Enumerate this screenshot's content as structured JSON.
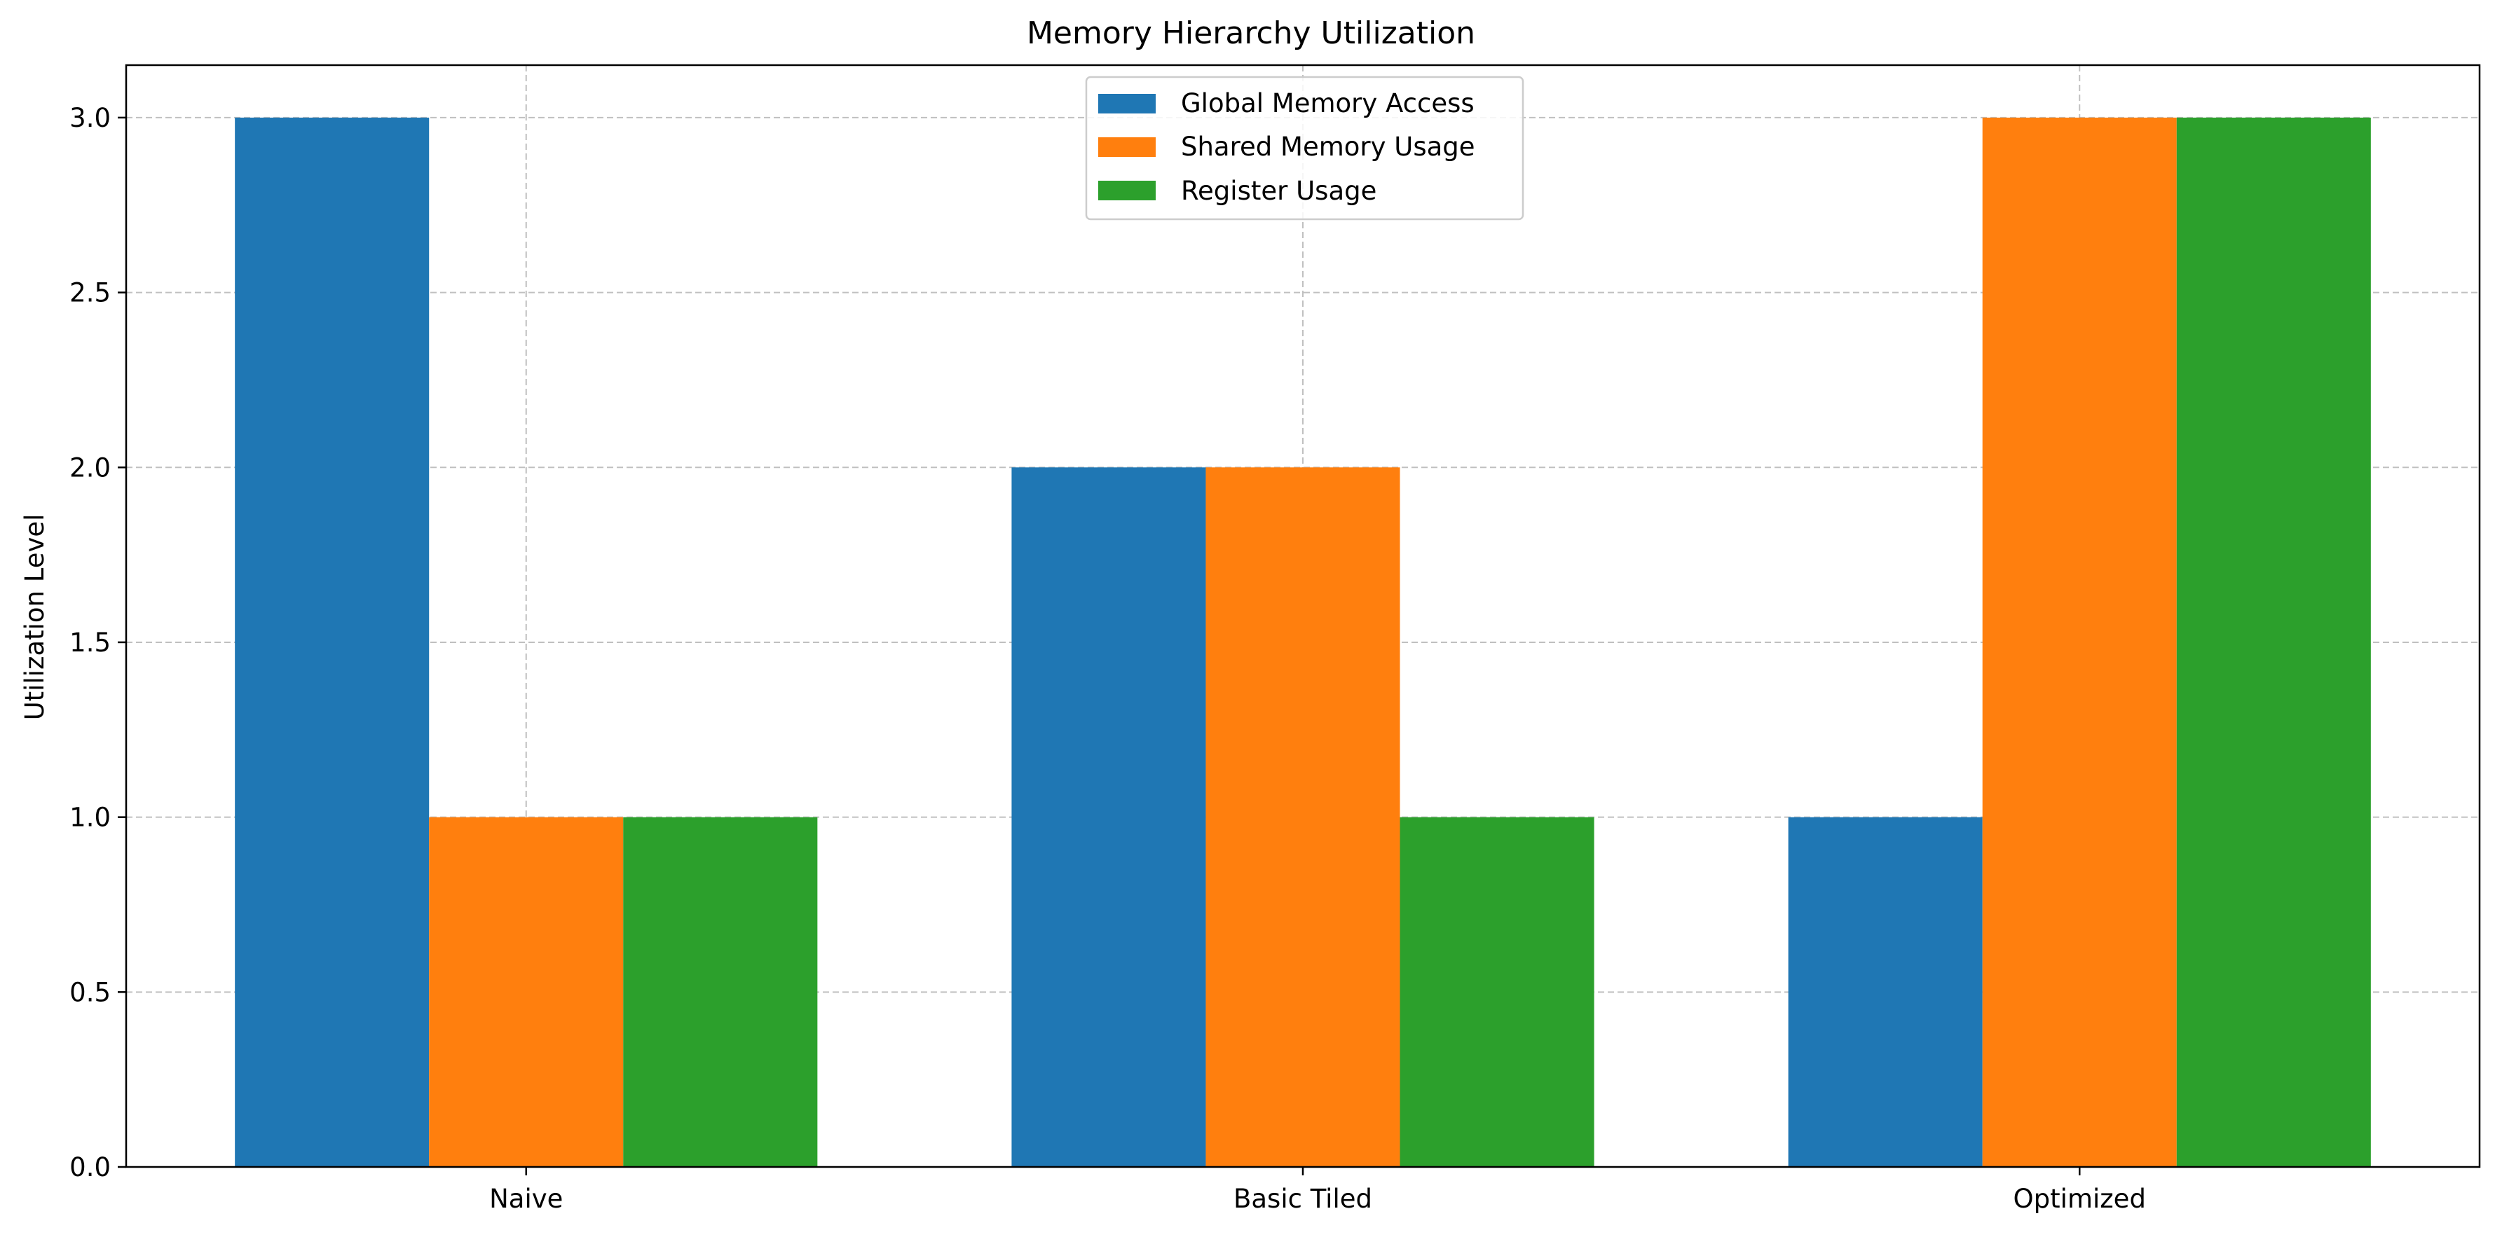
{
  "chart_data": {
    "type": "bar",
    "title": "Memory Hierarchy Utilization",
    "xlabel": "",
    "ylabel": "Utilization Level",
    "categories": [
      "Naive",
      "Basic Tiled",
      "Optimized"
    ],
    "series": [
      {
        "name": "Global Memory Access",
        "values": [
          3,
          2,
          1
        ],
        "color": "#1f77b4"
      },
      {
        "name": "Shared Memory Usage",
        "values": [
          1,
          2,
          3
        ],
        "color": "#ff7f0e"
      },
      {
        "name": "Register Usage",
        "values": [
          1,
          1,
          3
        ],
        "color": "#2ca02c"
      }
    ],
    "ylim": [
      0,
      3.15
    ],
    "yticks": [
      "0.0",
      "0.5",
      "1.0",
      "1.5",
      "2.0",
      "2.5",
      "3.0"
    ],
    "grid": true,
    "legend": "top-center"
  }
}
